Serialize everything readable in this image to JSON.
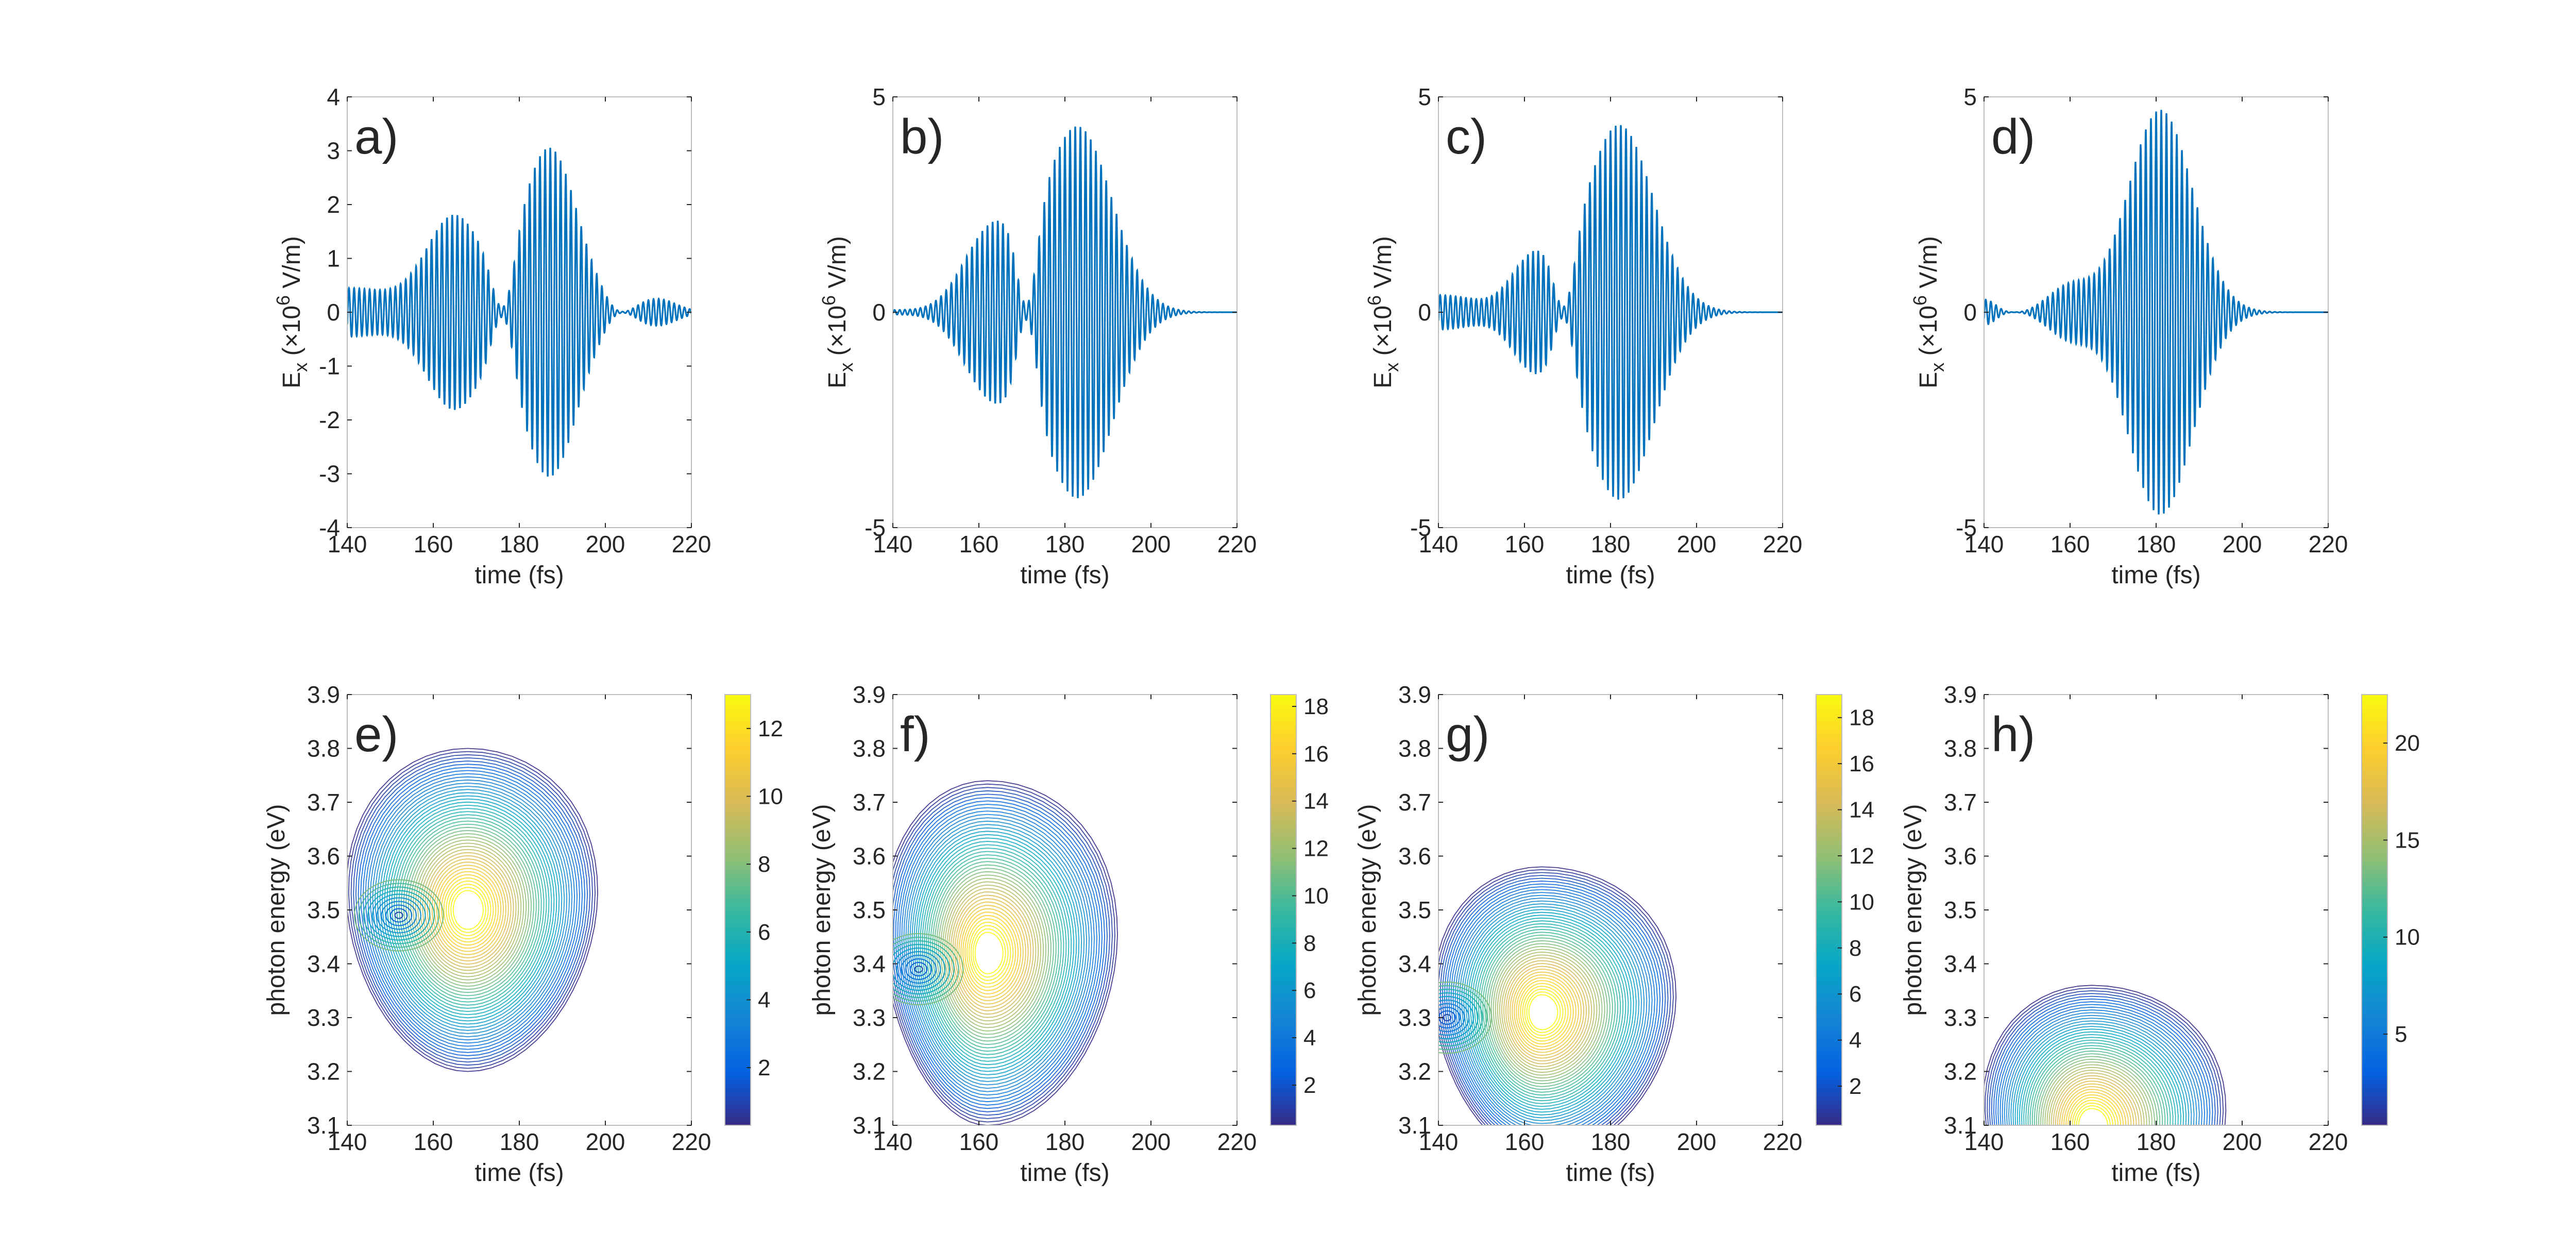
{
  "figure": {
    "panels": [
      {
        "letter": "a)"
      },
      {
        "letter": "b)"
      },
      {
        "letter": "c)"
      },
      {
        "letter": "d)"
      },
      {
        "letter": "e)"
      },
      {
        "letter": "f)"
      },
      {
        "letter": "g)"
      },
      {
        "letter": "h)"
      }
    ]
  },
  "colors": {
    "signal": "#0072BD",
    "axis": "#262626",
    "box": "#bdbdbd",
    "parula": [
      "#352a87",
      "#0363e1",
      "#1485d4",
      "#06a7c6",
      "#38b99e",
      "#92bf73",
      "#d9ba56",
      "#fcce2e",
      "#f9fb0e"
    ]
  },
  "chart_data": [
    {
      "type": "line",
      "panel": "a)",
      "title": "",
      "xlabel": "time (fs)",
      "ylabel": {
        "base": "E",
        "sub": "x",
        "pre": " (×10",
        "sup": "6",
        "post": " V/m)"
      },
      "xlim": [
        140,
        220
      ],
      "ylim": [
        -4,
        4
      ],
      "xticks": [
        140,
        160,
        180,
        200,
        220
      ],
      "yticks": [
        -4,
        -3,
        -2,
        -1,
        0,
        1,
        2,
        3,
        4
      ],
      "carrier_period_fs": 1.2,
      "envelope_peaks": [
        {
          "t": 140,
          "amplitude": 0.45,
          "width_fs": 12,
          "kind": "edge"
        },
        {
          "t": 165,
          "amplitude": 1.75,
          "width_fs": 6.5
        },
        {
          "t": 187,
          "amplitude": 3.05,
          "width_fs": 6.5
        },
        {
          "t": 212,
          "amplitude": 0.25,
          "width_fs": 4.5
        }
      ],
      "envelope_minima_t": [
        176,
        204
      ]
    },
    {
      "type": "line",
      "panel": "b)",
      "title": "",
      "xlabel": "time (fs)",
      "ylabel": {
        "base": "E",
        "sub": "x",
        "pre": " (×10",
        "sup": "6",
        "post": " V/m)"
      },
      "xlim": [
        140,
        220
      ],
      "ylim": [
        -5,
        5
      ],
      "xticks": [
        140,
        160,
        180,
        200,
        220
      ],
      "yticks": [
        -5,
        0,
        5
      ],
      "carrier_period_fs": 1.2,
      "envelope_peaks": [
        {
          "t": 140,
          "amplitude": 0.05,
          "width_fs": 6,
          "kind": "edge"
        },
        {
          "t": 163,
          "amplitude": 1.9,
          "width_fs": 6.5
        },
        {
          "t": 183,
          "amplitude": 4.3,
          "width_fs": 8
        }
      ],
      "envelope_minima_t": [
        171
      ]
    },
    {
      "type": "line",
      "panel": "c)",
      "title": "",
      "xlabel": "time (fs)",
      "ylabel": {
        "base": "E",
        "sub": "x",
        "pre": " (×10",
        "sup": "6",
        "post": " V/m)"
      },
      "xlim": [
        140,
        220
      ],
      "ylim": [
        -5,
        5
      ],
      "xticks": [
        140,
        160,
        180,
        200,
        220
      ],
      "yticks": [
        -5,
        0,
        5
      ],
      "carrier_period_fs": 1.2,
      "envelope_peaks": [
        {
          "t": 140,
          "amplitude": 0.4,
          "width_fs": 10,
          "kind": "edge"
        },
        {
          "t": 162,
          "amplitude": 1.2,
          "width_fs": 5
        },
        {
          "t": 182,
          "amplitude": 4.35,
          "width_fs": 8
        }
      ],
      "envelope_minima_t": [
        169
      ]
    },
    {
      "type": "line",
      "panel": "d)",
      "title": "",
      "xlabel": "time (fs)",
      "ylabel": {
        "base": "E",
        "sub": "x",
        "pre": " (×10",
        "sup": "6",
        "post": " V/m)"
      },
      "xlim": [
        140,
        220
      ],
      "ylim": [
        -5,
        5
      ],
      "xticks": [
        140,
        160,
        180,
        200,
        220
      ],
      "yticks": [
        -5,
        0,
        5
      ],
      "carrier_period_fs": 1.2,
      "envelope_peaks": [
        {
          "t": 140,
          "amplitude": 0.3,
          "width_fs": 3,
          "kind": "edge"
        },
        {
          "t": 160,
          "amplitude": 0.6,
          "width_fs": 5
        },
        {
          "t": 181,
          "amplitude": 4.7,
          "width_fs": 7.5
        }
      ],
      "envelope_minima_t": [
        147
      ]
    },
    {
      "type": "heatmap",
      "subtype": "contour",
      "panel": "e)",
      "title": "",
      "xlabel": "time (fs)",
      "ylabel": "photon energy (eV)",
      "xlim": [
        140,
        220
      ],
      "ylim": [
        3.1,
        3.9
      ],
      "xticks": [
        140,
        160,
        180,
        200,
        220
      ],
      "yticks": [
        3.1,
        3.2,
        3.3,
        3.4,
        3.5,
        3.6,
        3.7,
        3.8,
        3.9
      ],
      "colorbar": {
        "min": 0.3,
        "max": 13,
        "ticks": [
          2,
          4,
          6,
          8,
          10,
          12
        ]
      },
      "peak": {
        "t": 168,
        "e": 3.5,
        "value": 13
      },
      "dip": {
        "t": 152,
        "e": 3.49,
        "value": 0.3
      },
      "extent": {
        "t_from": 140,
        "t_to": 198,
        "e_low": 3.2,
        "e_high": 3.78
      }
    },
    {
      "type": "heatmap",
      "subtype": "contour",
      "panel": "f)",
      "title": "",
      "xlabel": "time (fs)",
      "ylabel": "photon energy (eV)",
      "xlim": [
        140,
        220
      ],
      "ylim": [
        3.1,
        3.9
      ],
      "xticks": [
        140,
        160,
        180,
        200,
        220
      ],
      "yticks": [
        3.1,
        3.2,
        3.3,
        3.4,
        3.5,
        3.6,
        3.7,
        3.8,
        3.9
      ],
      "colorbar": {
        "min": 0.3,
        "max": 18.5,
        "ticks": [
          2,
          4,
          6,
          8,
          10,
          12,
          14,
          16,
          18
        ]
      },
      "peak": {
        "t": 162,
        "e": 3.42,
        "value": 18.5
      },
      "dip": {
        "t": 146,
        "e": 3.39,
        "value": 0.3
      },
      "extent": {
        "t_from": 140,
        "t_to": 192,
        "e_low": 3.1,
        "e_high": 3.68
      }
    },
    {
      "type": "heatmap",
      "subtype": "contour",
      "panel": "g)",
      "title": "",
      "xlabel": "time (fs)",
      "ylabel": "photon energy (eV)",
      "xlim": [
        140,
        220
      ],
      "ylim": [
        3.1,
        3.9
      ],
      "xticks": [
        140,
        160,
        180,
        200,
        220
      ],
      "yticks": [
        3.1,
        3.2,
        3.3,
        3.4,
        3.5,
        3.6,
        3.7,
        3.8,
        3.9
      ],
      "colorbar": {
        "min": 0.3,
        "max": 19,
        "ticks": [
          2,
          4,
          6,
          8,
          10,
          12,
          14,
          16,
          18
        ]
      },
      "peak": {
        "t": 164,
        "e": 3.31,
        "value": 19
      },
      "dip": {
        "t": 142,
        "e": 3.3,
        "value": 0.3
      },
      "extent": {
        "t_from": 140,
        "t_to": 195,
        "e_low": 3.1,
        "e_high": 3.58
      }
    },
    {
      "type": "heatmap",
      "subtype": "contour",
      "panel": "h)",
      "title": "",
      "xlabel": "time (fs)",
      "ylabel": "photon energy (eV)",
      "xlim": [
        140,
        220
      ],
      "ylim": [
        3.1,
        3.9
      ],
      "xticks": [
        140,
        160,
        180,
        200,
        220
      ],
      "yticks": [
        3.1,
        3.2,
        3.3,
        3.4,
        3.5,
        3.6,
        3.7,
        3.8,
        3.9
      ],
      "colorbar": {
        "min": 0.3,
        "max": 22.5,
        "ticks": [
          5,
          10,
          15,
          20
        ]
      },
      "peak": {
        "t": 165,
        "e": 3.1,
        "value": 22.5
      },
      "dip": null,
      "extent": {
        "t_from": 140,
        "t_to": 196,
        "e_low": 3.1,
        "e_high": 3.36
      }
    }
  ]
}
